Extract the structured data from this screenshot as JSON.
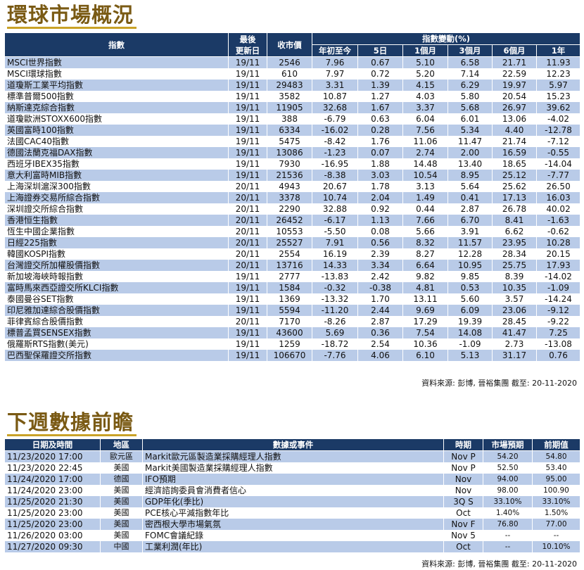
{
  "market": {
    "title": "環球市場概況",
    "headers": {
      "index": "指數",
      "last_update": "最後\n更新日",
      "close": "收市價",
      "change_group": "指數變動(%)",
      "ytd": "年初至今",
      "d5": "5日",
      "m1": "1個月",
      "m3": "3個月",
      "m6": "6個月",
      "y1": "1年"
    },
    "rows": [
      [
        "MSCI世界指數",
        "19/11",
        "2546",
        "7.96",
        "0.67",
        "5.10",
        "6.58",
        "21.71",
        "11.93"
      ],
      [
        "MSCI環球指數",
        "19/11",
        "610",
        "7.97",
        "0.72",
        "5.20",
        "7.14",
        "22.59",
        "12.23"
      ],
      [
        "道瓊斯工業平均指數",
        "19/11",
        "29483",
        "3.31",
        "1.39",
        "4.15",
        "6.29",
        "19.97",
        "5.97"
      ],
      [
        "標準普爾500指數",
        "19/11",
        "3582",
        "10.87",
        "1.27",
        "4.03",
        "5.80",
        "20.54",
        "15.23"
      ],
      [
        "納斯達克綜合指數",
        "19/11",
        "11905",
        "32.68",
        "1.67",
        "3.37",
        "5.68",
        "26.97",
        "39.62"
      ],
      [
        "道瓊歐洲STOXX600指數",
        "19/11",
        "388",
        "-6.79",
        "0.63",
        "6.04",
        "6.01",
        "13.06",
        "-4.02"
      ],
      [
        "英國富時100指數",
        "19/11",
        "6334",
        "-16.02",
        "0.28",
        "7.56",
        "5.34",
        "4.40",
        "-12.78"
      ],
      [
        "法國CAC40指數",
        "19/11",
        "5475",
        "-8.42",
        "1.76",
        "11.06",
        "11.47",
        "21.74",
        "-7.12"
      ],
      [
        "德國法蘭克福DAX指數",
        "19/11",
        "13086",
        "-1.23",
        "0.07",
        "2.74",
        "2.00",
        "16.59",
        "-0.55"
      ],
      [
        "西班牙IBEX35指數",
        "19/11",
        "7930",
        "-16.95",
        "1.88",
        "14.48",
        "13.40",
        "18.65",
        "-14.04"
      ],
      [
        "意大利富時MIB指數",
        "19/11",
        "21536",
        "-8.38",
        "3.03",
        "10.54",
        "8.95",
        "25.12",
        "-7.77"
      ],
      [
        "上海深圳滬深300指數",
        "20/11",
        "4943",
        "20.67",
        "1.78",
        "3.13",
        "5.64",
        "25.62",
        "26.50"
      ],
      [
        "上海證券交易所綜合指數",
        "20/11",
        "3378",
        "10.74",
        "2.04",
        "1.49",
        "0.41",
        "17.13",
        "16.03"
      ],
      [
        "深圳證交所綜合指數",
        "20/11",
        "2290",
        "32.88",
        "0.92",
        "0.44",
        "2.87",
        "26.78",
        "40.02"
      ],
      [
        "香港恒生指數",
        "20/11",
        "26452",
        "-6.17",
        "1.13",
        "7.66",
        "6.70",
        "8.41",
        "-1.63"
      ],
      [
        "恆生中國企業指數",
        "20/11",
        "10553",
        "-5.50",
        "0.08",
        "5.66",
        "3.91",
        "6.62",
        "-0.62"
      ],
      [
        "日經225指數",
        "20/11",
        "25527",
        "7.91",
        "0.56",
        "8.32",
        "11.57",
        "23.95",
        "10.28"
      ],
      [
        "韓國KOSPI指數",
        "20/11",
        "2554",
        "16.19",
        "2.39",
        "8.27",
        "12.28",
        "28.34",
        "20.15"
      ],
      [
        "台灣證交所加權股價指數",
        "20/11",
        "13716",
        "14.33",
        "3.34",
        "6.64",
        "10.95",
        "25.75",
        "17.93"
      ],
      [
        "新加坡海峽時報指數",
        "19/11",
        "2777",
        "-13.83",
        "2.42",
        "9.82",
        "9.85",
        "8.39",
        "-14.02"
      ],
      [
        "富時馬來西亞證交所KLCI指數",
        "19/11",
        "1584",
        "-0.32",
        "-0.38",
        "4.81",
        "0.53",
        "10.35",
        "-1.09"
      ],
      [
        "泰國曼谷SET指數",
        "19/11",
        "1369",
        "-13.32",
        "1.70",
        "13.11",
        "5.60",
        "3.57",
        "-14.24"
      ],
      [
        "印尼雅加達綜合股價指數",
        "19/11",
        "5594",
        "-11.20",
        "2.44",
        "9.69",
        "6.09",
        "23.06",
        "-9.12"
      ],
      [
        "菲律賓綜合股價指數",
        "20/11",
        "7170",
        "-8.26",
        "2.87",
        "17.29",
        "19.39",
        "28.45",
        "-9.22"
      ],
      [
        "標普孟買SENSEX指數",
        "19/11",
        "43600",
        "5.69",
        "0.36",
        "7.54",
        "14.08",
        "41.47",
        "7.25"
      ],
      [
        "俄羅斯RTS指數(美元)",
        "19/11",
        "1259",
        "-18.72",
        "2.54",
        "10.36",
        "-1.09",
        "2.73",
        "-13.08"
      ],
      [
        "巴西聖保羅證交所指數",
        "19/11",
        "106670",
        "-7.76",
        "4.06",
        "6.10",
        "5.13",
        "31.17",
        "0.76"
      ]
    ],
    "source": "資料來源: 彭博, 晉裕集團 截至: 20-11-2020"
  },
  "calendar": {
    "title": "下週數據前瞻",
    "headers": {
      "datetime": "日期及時間",
      "region": "地區",
      "event": "數據或事件",
      "period": "時期",
      "forecast": "市場預期",
      "previous": "前期值"
    },
    "rows": [
      [
        "11/23/2020 17:00",
        "歐元區",
        "Markit歐元區製造業採購經理人指數",
        "Nov P",
        "54.20",
        "54.80"
      ],
      [
        "11/23/2020 22:45",
        "美國",
        "Markit美國製造業採購經理人指數",
        "Nov P",
        "52.50",
        "53.40"
      ],
      [
        "11/24/2020 17:00",
        "德國",
        "IFO預期",
        "Nov",
        "94.00",
        "95.00"
      ],
      [
        "11/24/2020 23:00",
        "美國",
        "經濟諮詢委員會消費者信心",
        "Nov",
        "98.00",
        "100.90"
      ],
      [
        "11/25/2020 21:30",
        "美國",
        "GDP年化(季比)",
        "3Q S",
        "33.10%",
        "33.10%"
      ],
      [
        "11/25/2020 23:00",
        "美國",
        "PCE核心平減指數年比",
        "Oct",
        "1.40%",
        "1.50%"
      ],
      [
        "11/25/2020 23:00",
        "美國",
        "密西根大學市場氣氛",
        "Nov F",
        "76.80",
        "77.00"
      ],
      [
        "11/26/2020 03:00",
        "美國",
        "FOMC會議紀錄",
        "Nov 5",
        "--",
        "--"
      ],
      [
        "11/27/2020 09:30",
        "中國",
        "工業利潤(年比)",
        "Oct",
        "--",
        "10.10%"
      ]
    ],
    "source": "資料來源: 彭博, 晉裕集團 截至: 20-11-2020"
  }
}
